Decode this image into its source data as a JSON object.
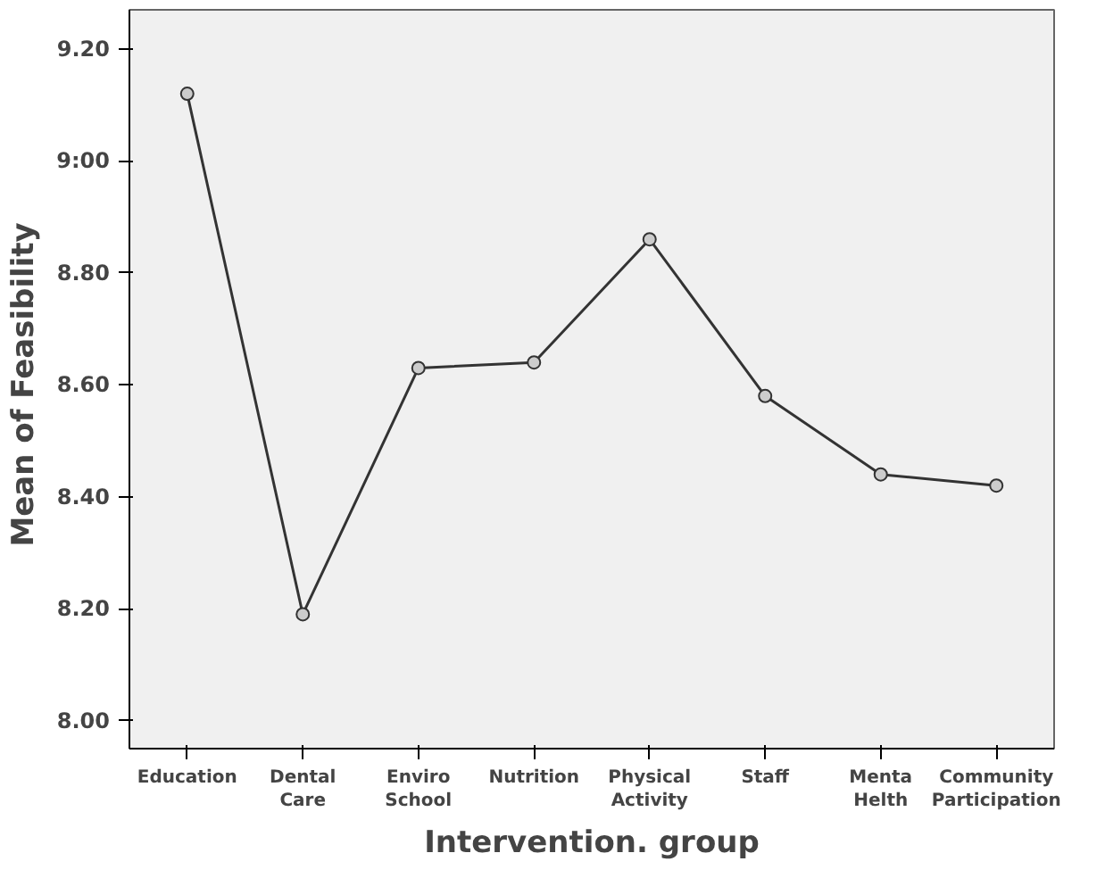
{
  "chart_data": {
    "type": "line",
    "xlabel": "Intervention. group",
    "ylabel": "Mean of  Feasibility",
    "categories": [
      "Education",
      "Dental\nCare",
      "Enviro\nSchool",
      "Nutrition",
      "Physical\nActivity",
      "Staff",
      "Menta\nHelth",
      "Community\nParticipation"
    ],
    "series": [
      {
        "color": "#333333",
        "values": [
          9.12,
          8.19,
          8.63,
          8.64,
          8.86,
          8.58,
          8.44,
          8.42
        ]
      }
    ],
    "ylim": [
      7.95,
      9.27
    ],
    "yticks": [
      {
        "value": 8.0,
        "label": "8.00"
      },
      {
        "value": 8.2,
        "label": "8.20"
      },
      {
        "value": 8.4,
        "label": "8.40"
      },
      {
        "value": 8.6,
        "label": "8.60"
      },
      {
        "value": 8.8,
        "label": "8.80"
      },
      {
        "value": 9.0,
        "label": "9:00"
      },
      {
        "value": 9.2,
        "label": "9.20"
      }
    ],
    "marker": "circle"
  }
}
